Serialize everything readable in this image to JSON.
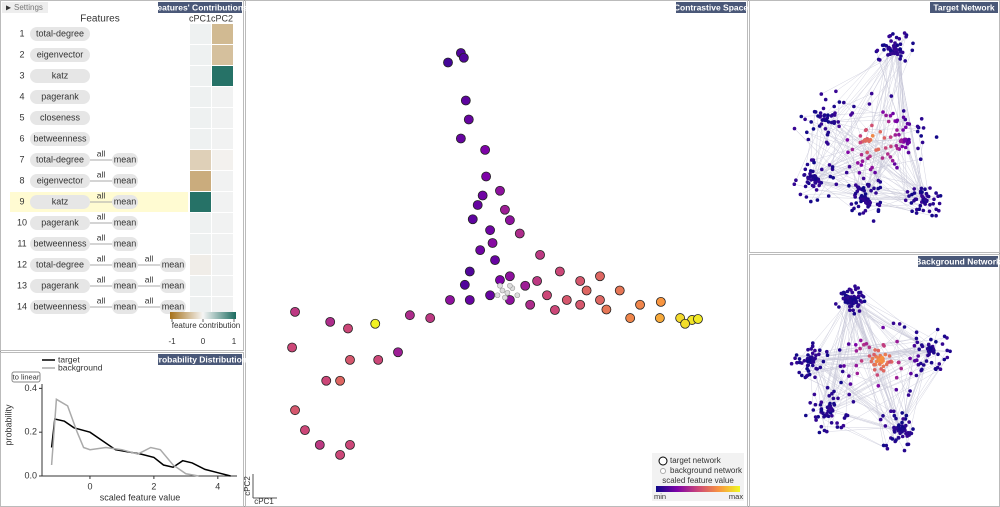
{
  "settings": {
    "label": "Settings"
  },
  "features_panel": {
    "title": "Features' Contributions",
    "header": "Features",
    "columns": [
      "cPC1",
      "cPC2"
    ],
    "colormap": [
      "#a6711a",
      "#f5f5f5",
      "#1b6b5f"
    ],
    "rows": [
      {
        "index": 1,
        "chain": [
          "total-degree"
        ],
        "values": [
          0.03,
          -0.45
        ]
      },
      {
        "index": 2,
        "chain": [
          "eigenvector"
        ],
        "values": [
          0.03,
          -0.4
        ]
      },
      {
        "index": 3,
        "chain": [
          "katz"
        ],
        "values": [
          0.03,
          0.95
        ]
      },
      {
        "index": 4,
        "chain": [
          "pagerank"
        ],
        "values": [
          0.03,
          0.02
        ]
      },
      {
        "index": 5,
        "chain": [
          "closeness"
        ],
        "values": [
          0.03,
          0.02
        ]
      },
      {
        "index": 6,
        "chain": [
          "betweenness"
        ],
        "values": [
          0.03,
          0.02
        ]
      },
      {
        "index": 7,
        "chain": [
          "total-degree",
          "all",
          "mean"
        ],
        "values": [
          -0.28,
          -0.03
        ]
      },
      {
        "index": 8,
        "chain": [
          "eigenvector",
          "all",
          "mean"
        ],
        "values": [
          -0.55,
          0.02
        ]
      },
      {
        "index": 9,
        "chain": [
          "katz",
          "all",
          "mean"
        ],
        "values": [
          0.95,
          0.02
        ],
        "highlighted": true
      },
      {
        "index": 10,
        "chain": [
          "pagerank",
          "all",
          "mean"
        ],
        "values": [
          0.03,
          0.02
        ]
      },
      {
        "index": 11,
        "chain": [
          "betweenness",
          "all",
          "mean"
        ],
        "values": [
          0.03,
          0.02
        ]
      },
      {
        "index": 12,
        "chain": [
          "total-degree",
          "all",
          "mean",
          "all",
          "mean"
        ],
        "values": [
          -0.06,
          0.02
        ]
      },
      {
        "index": 13,
        "chain": [
          "pagerank",
          "all",
          "mean",
          "all",
          "mean"
        ],
        "values": [
          0.03,
          0.02
        ]
      },
      {
        "index": 14,
        "chain": [
          "betweenness",
          "all",
          "mean",
          "all",
          "mean"
        ],
        "values": [
          0.03,
          0.02
        ]
      }
    ],
    "legend": {
      "label": "feature contribution",
      "range": [
        -1,
        1
      ],
      "ticks": [
        -1,
        0,
        1
      ]
    }
  },
  "probability_panel": {
    "title": "Probability Distribution",
    "button": "to linear",
    "xlabel": "scaled feature value",
    "ylabel": "probability",
    "xlim": [
      -1.5,
      4.6
    ],
    "ylim": [
      0,
      0.42
    ],
    "xticks": [
      0,
      2,
      4
    ],
    "yticks": [
      {
        "value": 0,
        "label": "0.0"
      },
      0.2,
      0.4
    ],
    "series": [
      {
        "name": "target",
        "color": "#000000",
        "x": [
          -1.2,
          -1.1,
          -0.8,
          -0.5,
          0,
          0.3,
          0.8,
          1.2,
          1.6,
          2,
          2.3,
          2.6,
          2.9,
          3.2,
          3.6,
          4,
          4.4
        ],
        "values": [
          0.13,
          0.26,
          0.25,
          0.22,
          0.2,
          0.17,
          0.12,
          0.11,
          0.1,
          0.085,
          0.05,
          0.04,
          0.07,
          0.06,
          0.03,
          0.015,
          0.0
        ]
      },
      {
        "name": "background",
        "color": "#aaaaaa",
        "x": [
          -1.2,
          -1.05,
          -0.7,
          -0.4,
          -0.2,
          0,
          0.5,
          1,
          1.5,
          1.9,
          2.2,
          2.6,
          3,
          3.4
        ],
        "values": [
          0.05,
          0.35,
          0.32,
          0.2,
          0.13,
          0.12,
          0.13,
          0.12,
          0.1,
          0.13,
          0.12,
          0.05,
          0.01,
          0.0
        ]
      }
    ]
  },
  "contrastive_panel": {
    "title": "Contrastive Space",
    "xlabel": "cPC1",
    "ylabel": "cPC2",
    "xlim": [
      0,
      100
    ],
    "ylim": [
      0,
      100
    ],
    "colormap": [
      "#0d0887",
      "#7e03a8",
      "#cc4778",
      "#f89540",
      "#f0f921"
    ],
    "target": {
      "x": [
        42.6,
        43.2,
        40,
        43.6,
        44.2,
        42.6,
        47.5,
        47.7,
        50.5,
        51.5,
        54.5,
        46.5,
        58.6,
        62.6,
        66.7,
        70.7,
        74.7,
        70.7,
        78.8,
        83,
        86.9,
        89.3,
        87.9,
        90.5,
        82.8,
        76.8,
        25.3,
        9.1,
        8.5,
        16.2,
        19.8,
        29.9,
        25.9,
        20.2,
        18.2,
        15.4,
        9.1,
        11.1,
        14.1,
        18.2,
        20.2,
        32.3,
        36.4,
        40.4,
        44.4,
        48.5,
        52.5,
        56.6,
        61.6,
        66.7,
        44.4,
        49.5,
        52.5,
        55.6,
        48.5,
        52.5,
        50.5,
        43.4,
        46,
        47,
        49,
        45,
        58,
        60,
        64,
        68,
        72
      ],
      "y": [
        92,
        91,
        90,
        82,
        78,
        74,
        71.6,
        66,
        63,
        59,
        54,
        50.5,
        49.5,
        46,
        44,
        45,
        42,
        40,
        39,
        39.6,
        36.2,
        35.8,
        35,
        36,
        36.2,
        36.2,
        35,
        37.5,
        30,
        35.4,
        34,
        29,
        27.4,
        27.4,
        23,
        23,
        16.8,
        12.6,
        9.5,
        7.4,
        9.5,
        36.8,
        36.2,
        40,
        40,
        41,
        40,
        39,
        37.9,
        39,
        46,
        48.4,
        45,
        43,
        54.7,
        56.8,
        44.2,
        43.2,
        60,
        62,
        52,
        57,
        44,
        41,
        40,
        42,
        38
      ],
      "values": [
        0.15,
        0.15,
        0.12,
        0.18,
        0.2,
        0.2,
        0.25,
        0.25,
        0.3,
        0.35,
        0.4,
        0.22,
        0.45,
        0.5,
        0.55,
        0.6,
        0.65,
        0.6,
        0.7,
        0.75,
        0.92,
        0.95,
        0.93,
        0.96,
        0.8,
        0.7,
        0.98,
        0.45,
        0.5,
        0.4,
        0.5,
        0.35,
        0.5,
        0.55,
        0.6,
        0.5,
        0.55,
        0.5,
        0.45,
        0.5,
        0.5,
        0.4,
        0.45,
        0.3,
        0.2,
        0.2,
        0.3,
        0.4,
        0.5,
        0.55,
        0.15,
        0.2,
        0.3,
        0.35,
        0.22,
        0.3,
        0.25,
        0.15,
        0.2,
        0.22,
        0.28,
        0.18,
        0.45,
        0.5,
        0.55,
        0.6,
        0.65
      ]
    },
    "background": {
      "x": [
        50,
        51,
        52,
        53,
        51.5,
        52.5,
        54,
        50.5
      ],
      "y": [
        41,
        42,
        41.5,
        42.5,
        40.5,
        43,
        41,
        43
      ]
    },
    "legend": {
      "target": "target network",
      "background": "background network",
      "color_label": "scaled feature value",
      "min": "min",
      "max": "max"
    }
  },
  "target_network": {
    "title": "Target Network"
  },
  "background_network": {
    "title": "Background Network"
  }
}
